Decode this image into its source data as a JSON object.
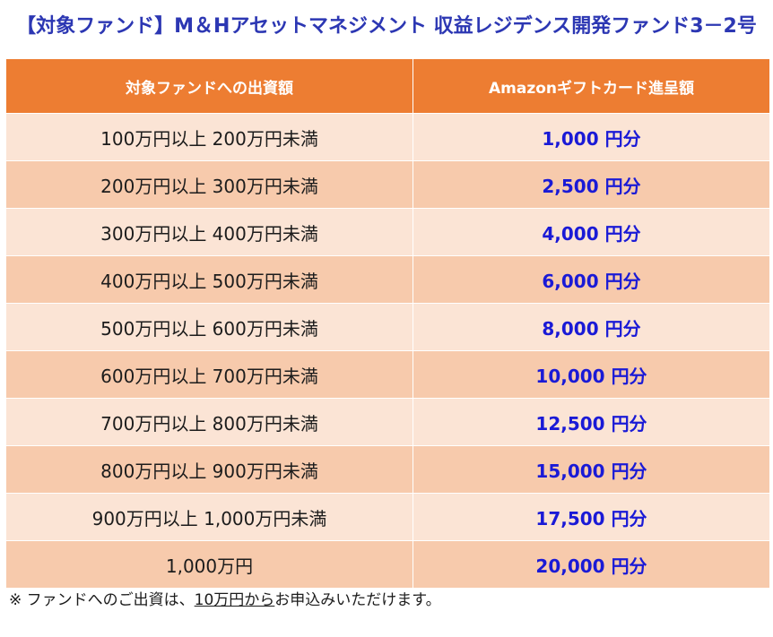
{
  "title": "【対象ファンド】M＆Hアセットマネジメント 収益レジデンス開発ファンド3－2号",
  "table": {
    "headers": [
      "対象ファンドへの出資額",
      "Amazonギフトカード進呈額"
    ],
    "rows": [
      {
        "amount": "100万円以上 200万円未満",
        "reward": "1,000 円分"
      },
      {
        "amount": "200万円以上 300万円未満",
        "reward": "2,500 円分"
      },
      {
        "amount": "300万円以上 400万円未満",
        "reward": "4,000 円分"
      },
      {
        "amount": "400万円以上 500万円未満",
        "reward": "6,000 円分"
      },
      {
        "amount": "500万円以上 600万円未満",
        "reward": "8,000 円分"
      },
      {
        "amount": "600万円以上 700万円未満",
        "reward": "10,000 円分"
      },
      {
        "amount": "700万円以上 800万円未満",
        "reward": "12,500 円分"
      },
      {
        "amount": "800万円以上 900万円未満",
        "reward": "15,000 円分"
      },
      {
        "amount": "900万円以上 1,000万円未満",
        "reward": "17,500 円分"
      },
      {
        "amount": "1,000万円",
        "reward": "20,000 円分"
      }
    ]
  },
  "note": {
    "prefix": "※ ファンドへのご出資は、",
    "underlined": "10万円から",
    "suffix": "お申込みいただけます。"
  },
  "colors": {
    "title": "#2c37b3",
    "header_bg": "#ed7d32",
    "row_light": "#fbe4d5",
    "row_dark": "#f7caac",
    "reward_text": "#1a1ad6"
  }
}
